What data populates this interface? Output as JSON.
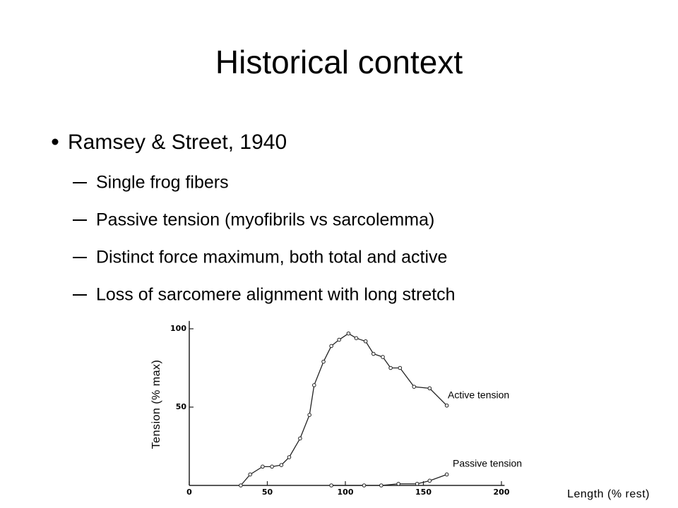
{
  "slide": {
    "title": "Historical context",
    "bullets": [
      {
        "text": "Ramsey & Street, 1940",
        "sub": [
          "Single frog fibers",
          "Passive tension (myofibrils vs sarcolemma)",
          "Distinct force maximum, both total and active",
          "Loss of sarcomere alignment with long stretch"
        ]
      }
    ]
  },
  "chart_data": {
    "type": "line",
    "x_label": "Length (% rest)",
    "y_label": "Tension (% max)",
    "xlim": [
      0,
      202
    ],
    "ylim": [
      0,
      105
    ],
    "xticks": [
      0,
      50,
      100,
      150,
      200
    ],
    "yticks": [
      50,
      100
    ],
    "annotations": [
      "Active tension",
      "Passive tension"
    ],
    "series": [
      {
        "name": "Active tension",
        "color": "#222222",
        "x": [
          33,
          39,
          47,
          53,
          59,
          64,
          71,
          77,
          80,
          86,
          91,
          96,
          102,
          107,
          113,
          118,
          124,
          129,
          135,
          144,
          154,
          165
        ],
        "values": [
          0,
          7,
          12,
          12,
          13,
          18,
          30,
          45,
          64,
          79,
          89,
          93,
          97,
          94,
          92,
          84,
          82,
          75,
          75,
          63,
          62,
          51
        ]
      },
      {
        "name": "Passive tension",
        "color": "#222222",
        "x": [
          91,
          112,
          123,
          134,
          146,
          154,
          165
        ],
        "values": [
          0,
          0,
          0,
          1,
          1,
          3,
          7
        ]
      }
    ]
  }
}
